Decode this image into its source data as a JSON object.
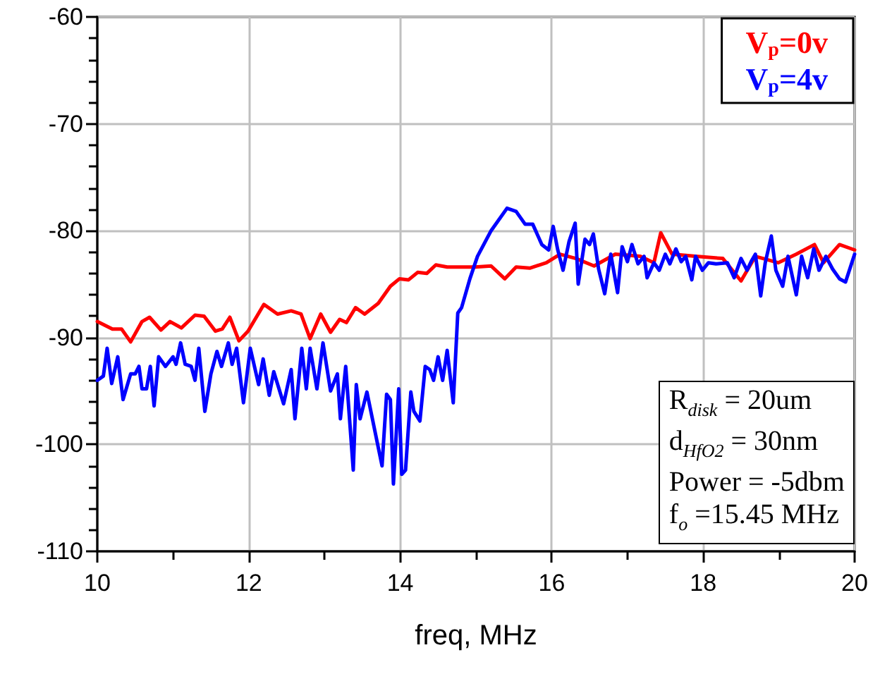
{
  "chart_data": {
    "type": "line",
    "xlabel": "freq, MHz",
    "xlim": [
      10,
      20
    ],
    "ylim": [
      -110,
      -60
    ],
    "xticks": [
      10,
      {
        "value": 11,
        "label": null
      },
      12,
      {
        "value": 13,
        "label": null
      },
      14,
      {
        "value": 15,
        "label": null
      },
      16,
      {
        "value": 17,
        "label": null
      },
      18,
      {
        "value": 19,
        "label": null
      },
      20
    ],
    "yticks": [
      -110,
      {
        "value": -108,
        "label": null
      },
      {
        "value": -106,
        "label": null
      },
      {
        "value": -104,
        "label": null
      },
      {
        "value": -102,
        "label": null
      },
      -100,
      {
        "value": -98,
        "label": null
      },
      {
        "value": -96,
        "label": null
      },
      {
        "value": -94,
        "label": null
      },
      {
        "value": -92,
        "label": null
      },
      -90,
      {
        "value": -88,
        "label": null
      },
      {
        "value": -86,
        "label": null
      },
      {
        "value": -84,
        "label": null
      },
      {
        "value": -82,
        "label": null
      },
      -80,
      {
        "value": -78,
        "label": null
      },
      {
        "value": -76,
        "label": null
      },
      {
        "value": -74,
        "label": null
      },
      {
        "value": -72,
        "label": null
      },
      -70,
      {
        "value": -68,
        "label": null
      },
      {
        "value": -66,
        "label": null
      },
      {
        "value": -64,
        "label": null
      },
      {
        "value": -62,
        "label": null
      },
      -60
    ],
    "grid": true,
    "legend": "top right",
    "marker": "none",
    "line_style": "solid",
    "series": [
      {
        "name": "V$_{p}$=0v",
        "color": "#ff0000",
        "x": [
          10.0,
          10.2,
          10.32,
          10.44,
          10.59,
          10.69,
          10.84,
          10.96,
          11.11,
          11.29,
          11.41,
          11.56,
          11.65,
          11.75,
          11.87,
          11.99,
          12.2,
          12.38,
          12.56,
          12.69,
          12.81,
          12.95,
          13.08,
          13.2,
          13.29,
          13.41,
          13.53,
          13.71,
          13.87,
          13.99,
          14.11,
          14.23,
          14.35,
          14.47,
          14.62,
          14.8,
          14.99,
          15.2,
          15.38,
          15.53,
          15.71,
          15.93,
          16.11,
          16.32,
          16.56,
          16.84,
          17.17,
          17.35,
          17.44,
          17.59,
          17.9,
          18.26,
          18.5,
          18.69,
          18.99,
          19.23,
          19.47,
          19.59,
          19.8,
          20.0
        ],
        "values": [
          -88.5,
          -89.2,
          -89.2,
          -90.4,
          -88.5,
          -88.1,
          -89.3,
          -88.5,
          -89.1,
          -87.9,
          -88.0,
          -89.4,
          -89.2,
          -88.1,
          -90.3,
          -89.4,
          -86.9,
          -87.8,
          -87.5,
          -87.8,
          -90.1,
          -87.8,
          -89.5,
          -88.3,
          -88.6,
          -87.2,
          -87.8,
          -86.8,
          -85.2,
          -84.5,
          -84.6,
          -83.9,
          -84.0,
          -83.2,
          -83.4,
          -83.4,
          -83.4,
          -83.3,
          -84.5,
          -83.4,
          -83.5,
          -83.0,
          -82.2,
          -82.6,
          -83.3,
          -82.2,
          -82.4,
          -83.0,
          -80.2,
          -82.2,
          -82.4,
          -82.6,
          -84.7,
          -82.4,
          -83.0,
          -82.2,
          -81.3,
          -83.0,
          -81.3,
          -81.8
        ]
      },
      {
        "name": "V$_{p}$=4v",
        "color": "#0000ff",
        "x": [
          10.0,
          10.08,
          10.13,
          10.19,
          10.27,
          10.34,
          10.44,
          10.5,
          10.55,
          10.59,
          10.65,
          10.7,
          10.75,
          10.81,
          10.9,
          11.0,
          11.04,
          11.1,
          11.16,
          11.24,
          11.29,
          11.34,
          11.42,
          11.5,
          11.58,
          11.64,
          11.73,
          11.78,
          11.84,
          11.93,
          12.02,
          12.13,
          12.19,
          12.27,
          12.33,
          12.46,
          12.56,
          12.61,
          12.7,
          12.76,
          12.81,
          12.9,
          12.98,
          13.08,
          13.17,
          13.21,
          13.28,
          13.38,
          13.42,
          13.47,
          13.56,
          13.67,
          13.76,
          13.82,
          13.87,
          13.91,
          13.98,
          14.02,
          14.07,
          14.14,
          14.18,
          14.26,
          14.33,
          14.39,
          14.44,
          14.5,
          14.56,
          14.62,
          14.7,
          14.76,
          14.81,
          14.92,
          15.02,
          15.2,
          15.41,
          15.53,
          15.65,
          15.75,
          15.87,
          15.96,
          16.02,
          16.08,
          16.15,
          16.23,
          16.31,
          16.35,
          16.44,
          16.5,
          16.55,
          16.62,
          16.7,
          16.78,
          16.87,
          16.93,
          17.0,
          17.06,
          17.14,
          17.22,
          17.26,
          17.35,
          17.42,
          17.5,
          17.56,
          17.64,
          17.71,
          17.77,
          17.85,
          17.9,
          17.99,
          18.07,
          18.17,
          18.32,
          18.41,
          18.5,
          18.58,
          18.64,
          18.69,
          18.76,
          18.82,
          18.9,
          18.96,
          19.05,
          19.12,
          19.23,
          19.3,
          19.38,
          19.46,
          19.53,
          19.62,
          19.71,
          19.8,
          19.88,
          20.0
        ],
        "values": [
          -94.0,
          -93.6,
          -91.0,
          -94.3,
          -91.8,
          -95.8,
          -93.4,
          -93.4,
          -92.7,
          -94.8,
          -94.8,
          -92.7,
          -96.4,
          -91.8,
          -92.7,
          -91.8,
          -92.5,
          -90.5,
          -92.5,
          -92.7,
          -94.0,
          -91.0,
          -96.9,
          -93.4,
          -91.3,
          -92.7,
          -90.5,
          -92.5,
          -91.0,
          -96.1,
          -91.0,
          -94.4,
          -92.0,
          -95.4,
          -93.2,
          -96.2,
          -93.0,
          -97.6,
          -91.0,
          -94.8,
          -91.0,
          -94.8,
          -90.5,
          -95.0,
          -93.4,
          -97.6,
          -92.7,
          -102.4,
          -94.4,
          -97.6,
          -95.1,
          -98.9,
          -102.0,
          -95.3,
          -95.8,
          -103.7,
          -94.8,
          -102.8,
          -102.4,
          -95.1,
          -96.9,
          -97.8,
          -92.7,
          -93.0,
          -94.0,
          -91.8,
          -94.0,
          -91.2,
          -96.1,
          -87.7,
          -87.2,
          -84.5,
          -82.4,
          -80.0,
          -77.9,
          -78.2,
          -79.4,
          -79.4,
          -81.3,
          -81.8,
          -79.6,
          -81.8,
          -83.7,
          -81.0,
          -79.3,
          -85.0,
          -80.8,
          -81.3,
          -80.3,
          -83.6,
          -85.9,
          -82.2,
          -85.8,
          -81.5,
          -82.9,
          -81.3,
          -83.1,
          -82.4,
          -84.4,
          -83.0,
          -83.7,
          -82.2,
          -83.1,
          -81.7,
          -82.9,
          -82.4,
          -84.6,
          -82.4,
          -83.7,
          -83.0,
          -83.1,
          -83.0,
          -84.4,
          -82.6,
          -83.7,
          -82.8,
          -82.2,
          -86.1,
          -83.0,
          -80.5,
          -83.7,
          -85.2,
          -82.4,
          -86.0,
          -82.4,
          -84.4,
          -81.7,
          -83.7,
          -82.4,
          -83.6,
          -84.5,
          -84.8,
          -82.2
        ]
      }
    ],
    "annotations": [
      "R$_{disk}$ = 20um",
      "d$_{HfO2}$ = 30nm",
      "Power = -5dbm",
      "f$_{o}$ =15.45 MHz"
    ]
  }
}
